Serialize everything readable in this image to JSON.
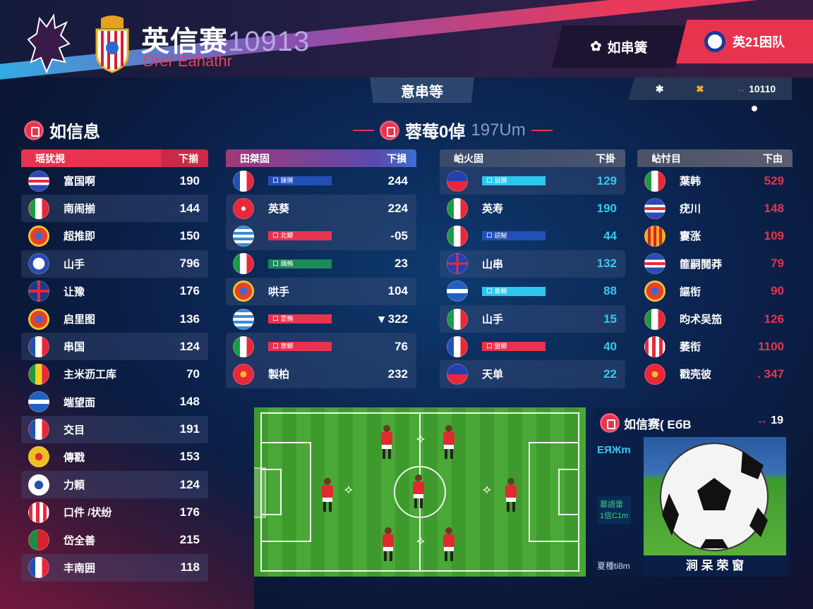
{
  "header": {
    "title": "英信赛",
    "title_number": "10913",
    "subtitle": "Drer Eahathr",
    "tab_dark_label": "如串簧",
    "tab_red_label": "英21困队",
    "banner_label": "意串等",
    "iconbar": {
      "icons": [
        "gear-icon",
        "tools-icon",
        "arrows-icon"
      ],
      "value": "10110"
    }
  },
  "sections": {
    "left_title": "如信息",
    "center_title": "蓉莓0倬",
    "center_title_suffix": "197Um"
  },
  "colors": {
    "accent_red": "#e8334f",
    "accent_cyan": "#2ec6ef",
    "accent_blue": "#2350b8",
    "value_red": "#e8334f",
    "value_cyan": "#35c8f0"
  },
  "tables": [
    {
      "header": "瑶犹挸",
      "header_right": "下揃",
      "rows": [
        {
          "flag": "blue-red-stripes",
          "name": "富国啊",
          "value": "190",
          "hl": false
        },
        {
          "flag": "italy",
          "name": "南闹揃",
          "value": "144",
          "hl": true
        },
        {
          "flag": "crest",
          "name": "超推即",
          "value": "150",
          "hl": false
        },
        {
          "flag": "crest-blue",
          "name": "山手",
          "value": "796",
          "hl": true
        },
        {
          "flag": "uk",
          "name": "让豫",
          "value": "176",
          "hl": false
        },
        {
          "flag": "crest",
          "name": "启里图",
          "value": "136",
          "hl": false
        },
        {
          "flag": "france",
          "name": "串国",
          "value": "124",
          "hl": true
        },
        {
          "flag": "mali",
          "name": "主米沥工库",
          "value": "70",
          "hl": false
        },
        {
          "flag": "arrow",
          "name": "端望面",
          "value": "148",
          "hl": false
        },
        {
          "flag": "france",
          "name": "交目",
          "value": "191",
          "hl": true
        },
        {
          "flag": "yellow",
          "name": "傳戳",
          "value": "153",
          "hl": false
        },
        {
          "flag": "cross",
          "name": "力頼",
          "value": "124",
          "hl": true
        },
        {
          "flag": "red-stripes",
          "name": "口件 /状纷",
          "value": "176",
          "hl": false
        },
        {
          "flag": "portugal",
          "name": "岱全善",
          "value": "215",
          "hl": false
        },
        {
          "flag": "france",
          "name": "丰南囲",
          "value": "118",
          "hl": true
        }
      ]
    },
    {
      "header": "田桀固",
      "header_right": "下損",
      "rows": [
        {
          "flag": "france",
          "name": "",
          "bar": "口 鎌膌",
          "bar_color": "#2350b8",
          "value": "244",
          "hl": false
        },
        {
          "flag": "swiss",
          "name": "英葵",
          "value": "224",
          "hl": true
        },
        {
          "flag": "greece",
          "name": "",
          "bar": "口 北鯽",
          "bar_color": "#e8334f",
          "value": "-05",
          "hl": true
        },
        {
          "flag": "italy",
          "name": "",
          "bar": "口 踊鮪",
          "bar_color": "#1a8a5a",
          "value": "23",
          "hl": false
        },
        {
          "flag": "crest",
          "name": "哄手",
          "value": "104",
          "hl": true
        },
        {
          "flag": "greece",
          "name": "",
          "bar": "口 霊鮪",
          "bar_color": "#e8334f",
          "value": "▾ 322",
          "hl": false
        },
        {
          "flag": "italy",
          "name": "",
          "bar": "口 萧鯽",
          "bar_color": "#e8334f",
          "value": "76",
          "hl": true
        },
        {
          "flag": "crest-red",
          "name": "製柏",
          "value": "232",
          "hl": true
        }
      ]
    },
    {
      "header": "岶火固",
      "header_right": "下掛",
      "rows": [
        {
          "flag": "blue-red",
          "name": "",
          "bar": "口 鼠膌",
          "bar_color": "#2ec6ef",
          "value": "129",
          "hl": true
        },
        {
          "flag": "italy",
          "name": "英寿",
          "value": "190",
          "hl": false
        },
        {
          "flag": "italy",
          "name": "",
          "bar": "口 諠鮅",
          "bar_color": "#2350b8",
          "value": "44",
          "hl": false
        },
        {
          "flag": "cross-red",
          "name": "山串",
          "value": "132",
          "hl": true
        },
        {
          "flag": "arrow",
          "name": "",
          "bar": "口 靠鮪",
          "bar_color": "#2ec6ef",
          "value": "88",
          "hl": false
        },
        {
          "flag": "italy",
          "name": "山手",
          "value": "15",
          "hl": true
        },
        {
          "flag": "france",
          "name": "",
          "bar": "口 盟鯽",
          "bar_color": "#e8334f",
          "value": "40",
          "hl": false
        },
        {
          "flag": "blue-red",
          "name": "天单",
          "value": "22",
          "hl": true
        }
      ]
    },
    {
      "header": "岾忖目",
      "header_right": "下由",
      "rows": [
        {
          "flag": "italy",
          "name": "葉韩",
          "value": "529",
          "hl": false
        },
        {
          "flag": "blue-red-stripes",
          "name": "疣川",
          "value": "148",
          "hl": false
        },
        {
          "flag": "catalonia",
          "name": "寠涨",
          "value": "109",
          "hl": false
        },
        {
          "flag": "blue-red-stripes",
          "name": "篚嗣鬩莽",
          "value": "79",
          "hl": false
        },
        {
          "flag": "crest",
          "name": "謳衔",
          "value": "90",
          "hl": false
        },
        {
          "flag": "italy",
          "name": "昀术吴笳",
          "value": "126",
          "hl": false
        },
        {
          "flag": "red-stripes",
          "name": "萎衔",
          "value": "1100",
          "hl": false
        },
        {
          "flag": "crest-red",
          "name": "戳壳彼",
          "value": ". 347",
          "hl": false
        }
      ]
    }
  ],
  "info_panel": {
    "title": "如信赛( ЕбВ",
    "arrow_value": "19",
    "label_cyan": "ЕЯЖm",
    "label_green_1": "墓語雷",
    "label_green_2": "1信C1m",
    "label_bottom": "夏種ti8m",
    "caption": "涧 呆 荣 窗"
  }
}
